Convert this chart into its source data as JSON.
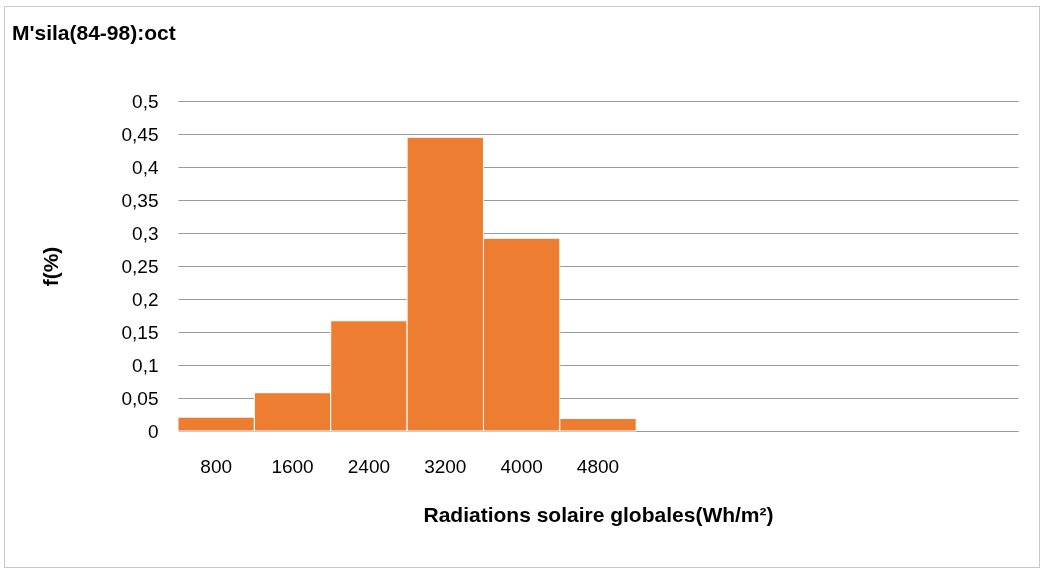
{
  "chart_data": {
    "type": "bar",
    "title": "M'sila(84-98):oct",
    "xlabel": "Radiations solaire globales(Wh/m²)",
    "ylabel": "f(%)",
    "categories": [
      "800",
      "1600",
      "2400",
      "3200",
      "4000",
      "4800",
      null,
      null,
      null,
      null,
      null
    ],
    "values": [
      0.021,
      0.058,
      0.167,
      0.445,
      0.292,
      0.019,
      null,
      null,
      null,
      null,
      null
    ],
    "color": "#ed7d31",
    "ylim": [
      0,
      0.5
    ],
    "yticks": [
      0,
      {
        "value": 0.05,
        "label": "0,05"
      },
      {
        "value": 0.1,
        "label": "0,1"
      },
      {
        "value": 0.15,
        "label": "0,15"
      },
      {
        "value": 0.2,
        "label": "0,2"
      },
      {
        "value": 0.25,
        "label": "0,25"
      },
      {
        "value": 0.3,
        "label": "0,3"
      },
      {
        "value": 0.35,
        "label": "0,35"
      },
      {
        "value": 0.4,
        "label": "0,4"
      },
      {
        "value": 0.45,
        "label": "0,45"
      },
      {
        "value": 0.5,
        "label": "0,5"
      }
    ],
    "grid": "y"
  }
}
